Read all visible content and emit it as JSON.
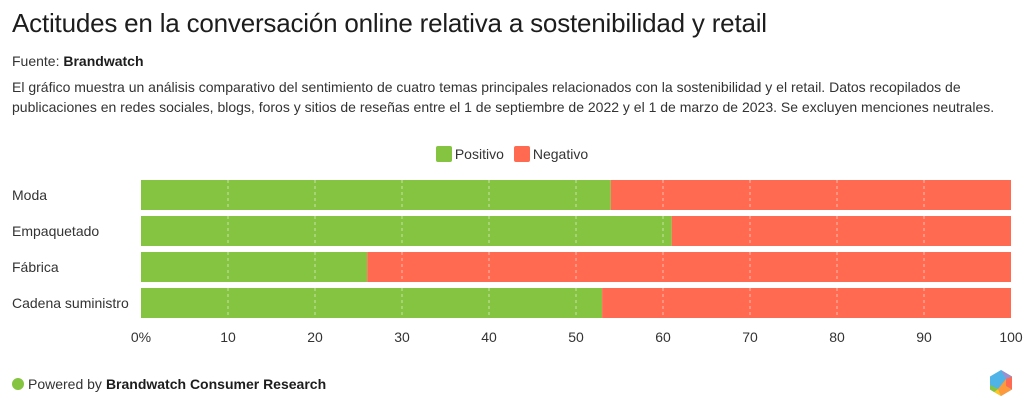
{
  "header": {
    "title": "Actitudes en la conversación online relativa a sostenibilidad y retail",
    "source_label": "Fuente:",
    "source_name": "Brandwatch",
    "description": "El gráfico muestra un análisis comparativo del sentimiento de cuatro temas principales relacionados con la sostenibilidad y el retail. Datos recopilados de publicaciones en redes sociales, blogs, foros y sitios de reseñas entre el 1 de septiembre de 2022 y el 1 de marzo de 2023. Se excluyen menciones neutrales."
  },
  "footer": {
    "powered_by": "Powered by",
    "brand": "Brandwatch Consumer Research",
    "dot_color": "#85c440",
    "logo_icon": "hexagon-logo-icon"
  },
  "colors": {
    "positive": "#85c440",
    "negative": "#ff6a50"
  },
  "chart_data": {
    "type": "bar",
    "orientation": "horizontal",
    "stacked": true,
    "title": "Actitudes en la conversación online relativa a sostenibilidad y retail",
    "categories": [
      "Moda",
      "Empaquetado",
      "Fábrica",
      "Cadena suministro"
    ],
    "series": [
      {
        "name": "Positivo",
        "color": "#85c440",
        "values": [
          54,
          61,
          26,
          53
        ]
      },
      {
        "name": "Negativo",
        "color": "#ff6a50",
        "values": [
          46,
          39,
          74,
          47
        ]
      }
    ],
    "xlim": [
      0,
      100
    ],
    "xticks": [
      0,
      10,
      20,
      30,
      40,
      50,
      60,
      70,
      80,
      90,
      100
    ],
    "xtick_labels": [
      "0%",
      "10",
      "20",
      "30",
      "40",
      "50",
      "60",
      "70",
      "80",
      "90",
      "100"
    ],
    "xlabel": "",
    "ylabel": "",
    "grid": true,
    "legend_position": "top-center"
  }
}
